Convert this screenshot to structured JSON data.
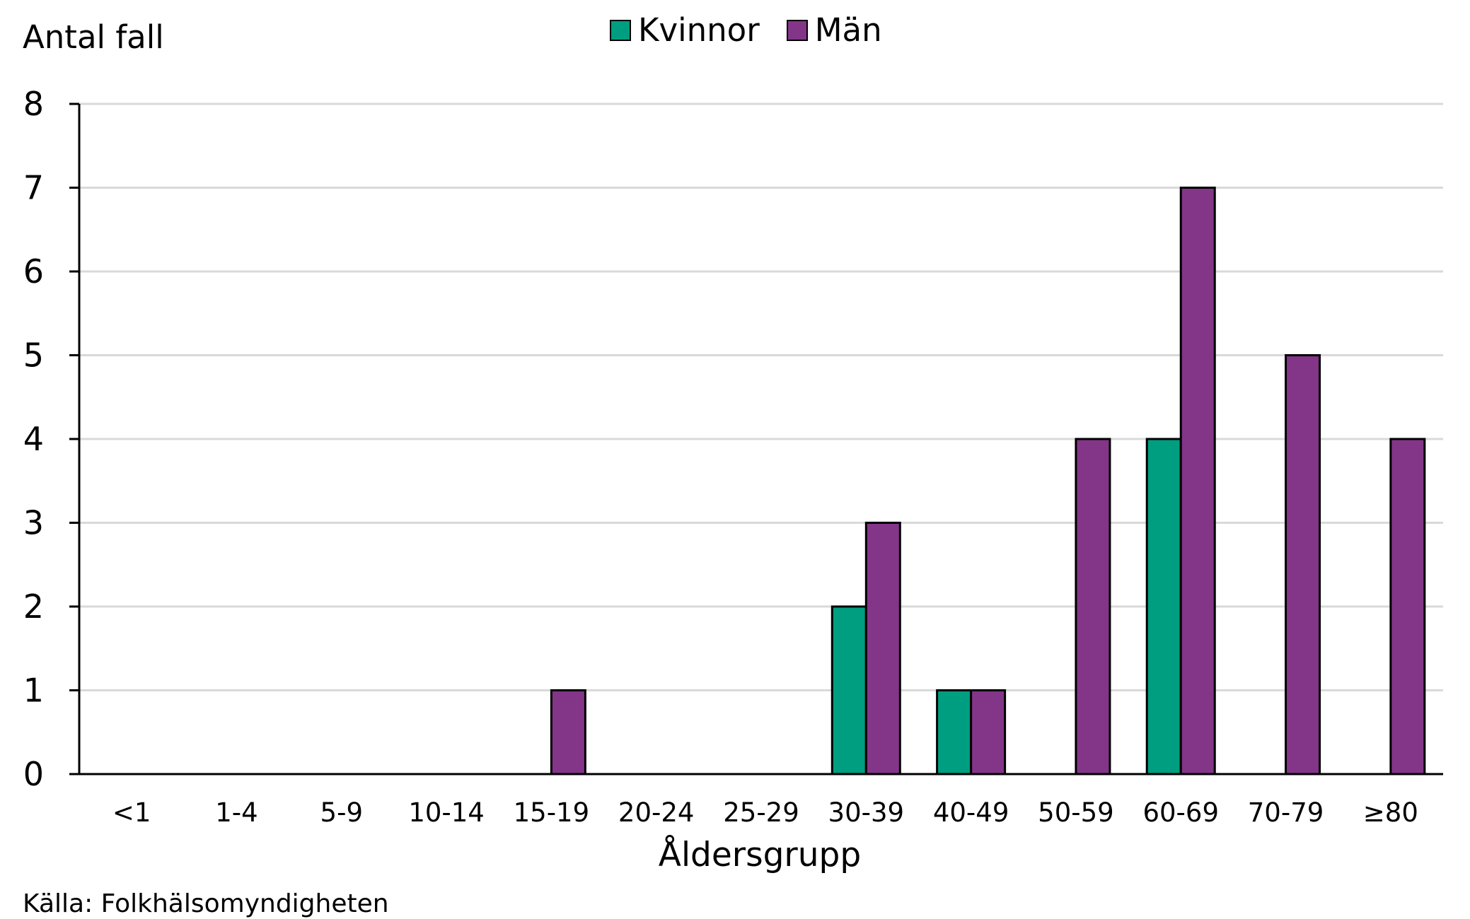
{
  "chart_data": {
    "type": "bar",
    "ylabel": "Antal fall",
    "xlabel": "Åldersgrupp",
    "categories": [
      "<1",
      "1-4",
      "5-9",
      "10-14",
      "15-19",
      "20-24",
      "25-29",
      "30-39",
      "40-49",
      "50-59",
      "60-69",
      "70-79",
      "≥80"
    ],
    "series": [
      {
        "name": "Kvinnor",
        "color": "#009e80",
        "values": [
          0,
          0,
          0,
          0,
          0,
          0,
          0,
          2,
          1,
          0,
          4,
          0,
          0
        ]
      },
      {
        "name": "Män",
        "color": "#833588",
        "values": [
          0,
          0,
          0,
          0,
          1,
          0,
          0,
          3,
          1,
          4,
          7,
          5,
          4
        ]
      }
    ],
    "ylim": [
      0,
      8
    ],
    "yticks": [
      0,
      1,
      2,
      3,
      4,
      5,
      6,
      7,
      8
    ],
    "grid": true,
    "legend_position": "top-center"
  },
  "source": "Källa: Folkhälsomyndigheten"
}
